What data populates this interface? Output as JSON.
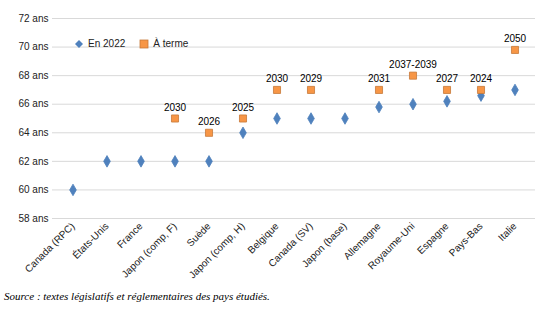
{
  "chart_data": {
    "type": "scatter",
    "caption": "Source : textes législatifs et réglementaires des pays étudiés.",
    "categories": [
      "Canada (RPC)",
      "États-Unis",
      "France",
      "Japon (comp, F)",
      "Suède",
      "Japon (comp, H)",
      "Belgique",
      "Canada (SV)",
      "Japon (base)",
      "Allemagne",
      "Royaume-Uni",
      "Espagne",
      "Pays-Bas",
      "Italie"
    ],
    "series": [
      {
        "name": "En 2022",
        "color": "#4F81BD",
        "marker": "diamond",
        "values": [
          60,
          62,
          62,
          62,
          62,
          64,
          65,
          65,
          65,
          65.8,
          66,
          66.2,
          66.6,
          67
        ]
      },
      {
        "name": "À terme",
        "color": "#F79646",
        "marker": "square",
        "values": [
          null,
          null,
          null,
          65,
          64,
          65,
          67,
          67,
          null,
          67,
          68,
          67,
          67,
          69.8
        ],
        "annotations": [
          null,
          null,
          null,
          "2030",
          "2026",
          "2025",
          "2030",
          "2029",
          null,
          "2031",
          "2037-2039",
          "2027",
          "2024",
          "2050"
        ]
      }
    ],
    "ylim": [
      58,
      72
    ],
    "yticks": [
      {
        "value": 58,
        "label": "58 ans"
      },
      {
        "value": 60,
        "label": "60 ans"
      },
      {
        "value": 62,
        "label": "62 ans"
      },
      {
        "value": 64,
        "label": "64 ans"
      },
      {
        "value": 66,
        "label": "66 ans"
      },
      {
        "value": 68,
        "label": "68 ans"
      },
      {
        "value": 70,
        "label": "70 ans"
      },
      {
        "value": 72,
        "label": "72 ans"
      }
    ],
    "grid": true,
    "legend": "top-left"
  }
}
